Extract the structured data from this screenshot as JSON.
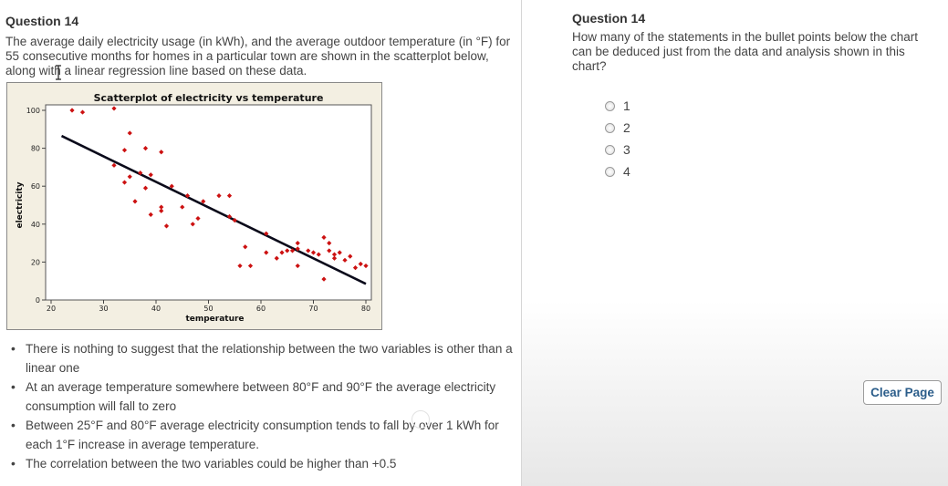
{
  "left": {
    "title": "Question 14",
    "stem": "The average daily electricity usage (in kWh), and the average outdoor temperature (in °F) for 55 consecutive months for homes in a particular town are shown in the scatterplot below, along with a linear regression line based on these data.",
    "bullets": [
      "There is nothing to suggest that the relationship between the two variables is other than a linear one",
      "At an average temperature somewhere between 80°F and 90°F the average electricity consumption will fall to zero",
      "Between 25°F and 80°F average electricity consumption tends to fall by over 1 kWh for each 1°F increase in average temperature.",
      "The correlation between the two variables could be higher than +0.5"
    ]
  },
  "right": {
    "title": "Question 14",
    "question": "How many of the statements in the bullet points below the chart can be deduced just from the data and analysis shown in this chart?",
    "options": [
      "1",
      "2",
      "3",
      "4"
    ],
    "clear_button": "Clear Page"
  },
  "colors": {
    "point": "#cc1111",
    "regression_line": "#0a0a1a",
    "chart_bg": "#f3efe2",
    "button_text": "#2b5d8a"
  },
  "chart_data": {
    "type": "scatter",
    "title": "Scatterplot of electricity vs temperature",
    "xlabel": "temperature",
    "ylabel": "electricity",
    "xlim": [
      20,
      80
    ],
    "ylim": [
      0,
      100
    ],
    "xticks": [
      20,
      30,
      40,
      50,
      60,
      70,
      80
    ],
    "yticks": [
      0,
      20,
      40,
      60,
      80,
      100
    ],
    "regression_line": {
      "x": [
        22,
        80
      ],
      "y": [
        86.5,
        8.5
      ]
    },
    "points": [
      {
        "x": 24,
        "y": 100
      },
      {
        "x": 26,
        "y": 99
      },
      {
        "x": 32,
        "y": 101
      },
      {
        "x": 32,
        "y": 71
      },
      {
        "x": 34,
        "y": 62
      },
      {
        "x": 34,
        "y": 79
      },
      {
        "x": 35,
        "y": 88
      },
      {
        "x": 35,
        "y": 65
      },
      {
        "x": 36,
        "y": 52
      },
      {
        "x": 37,
        "y": 67
      },
      {
        "x": 38,
        "y": 59
      },
      {
        "x": 38,
        "y": 80
      },
      {
        "x": 39,
        "y": 66
      },
      {
        "x": 39,
        "y": 45
      },
      {
        "x": 41,
        "y": 78
      },
      {
        "x": 41,
        "y": 47
      },
      {
        "x": 41,
        "y": 49
      },
      {
        "x": 42,
        "y": 39
      },
      {
        "x": 43,
        "y": 60
      },
      {
        "x": 45,
        "y": 49
      },
      {
        "x": 46,
        "y": 55
      },
      {
        "x": 47,
        "y": 40
      },
      {
        "x": 48,
        "y": 43
      },
      {
        "x": 49,
        "y": 52
      },
      {
        "x": 52,
        "y": 55
      },
      {
        "x": 54,
        "y": 44
      },
      {
        "x": 54,
        "y": 55
      },
      {
        "x": 55,
        "y": 42
      },
      {
        "x": 56,
        "y": 18
      },
      {
        "x": 57,
        "y": 28
      },
      {
        "x": 58,
        "y": 18
      },
      {
        "x": 61,
        "y": 35
      },
      {
        "x": 61,
        "y": 25
      },
      {
        "x": 63,
        "y": 22
      },
      {
        "x": 64,
        "y": 25
      },
      {
        "x": 65,
        "y": 26
      },
      {
        "x": 66,
        "y": 26
      },
      {
        "x": 67,
        "y": 30
      },
      {
        "x": 67,
        "y": 18
      },
      {
        "x": 67,
        "y": 27
      },
      {
        "x": 69,
        "y": 26
      },
      {
        "x": 70,
        "y": 25
      },
      {
        "x": 71,
        "y": 24
      },
      {
        "x": 72,
        "y": 33
      },
      {
        "x": 72,
        "y": 11
      },
      {
        "x": 73,
        "y": 30
      },
      {
        "x": 73,
        "y": 26
      },
      {
        "x": 74,
        "y": 22
      },
      {
        "x": 74,
        "y": 24
      },
      {
        "x": 75,
        "y": 25
      },
      {
        "x": 76,
        "y": 21
      },
      {
        "x": 77,
        "y": 23
      },
      {
        "x": 78,
        "y": 17
      },
      {
        "x": 79,
        "y": 19
      },
      {
        "x": 80,
        "y": 18
      }
    ]
  }
}
